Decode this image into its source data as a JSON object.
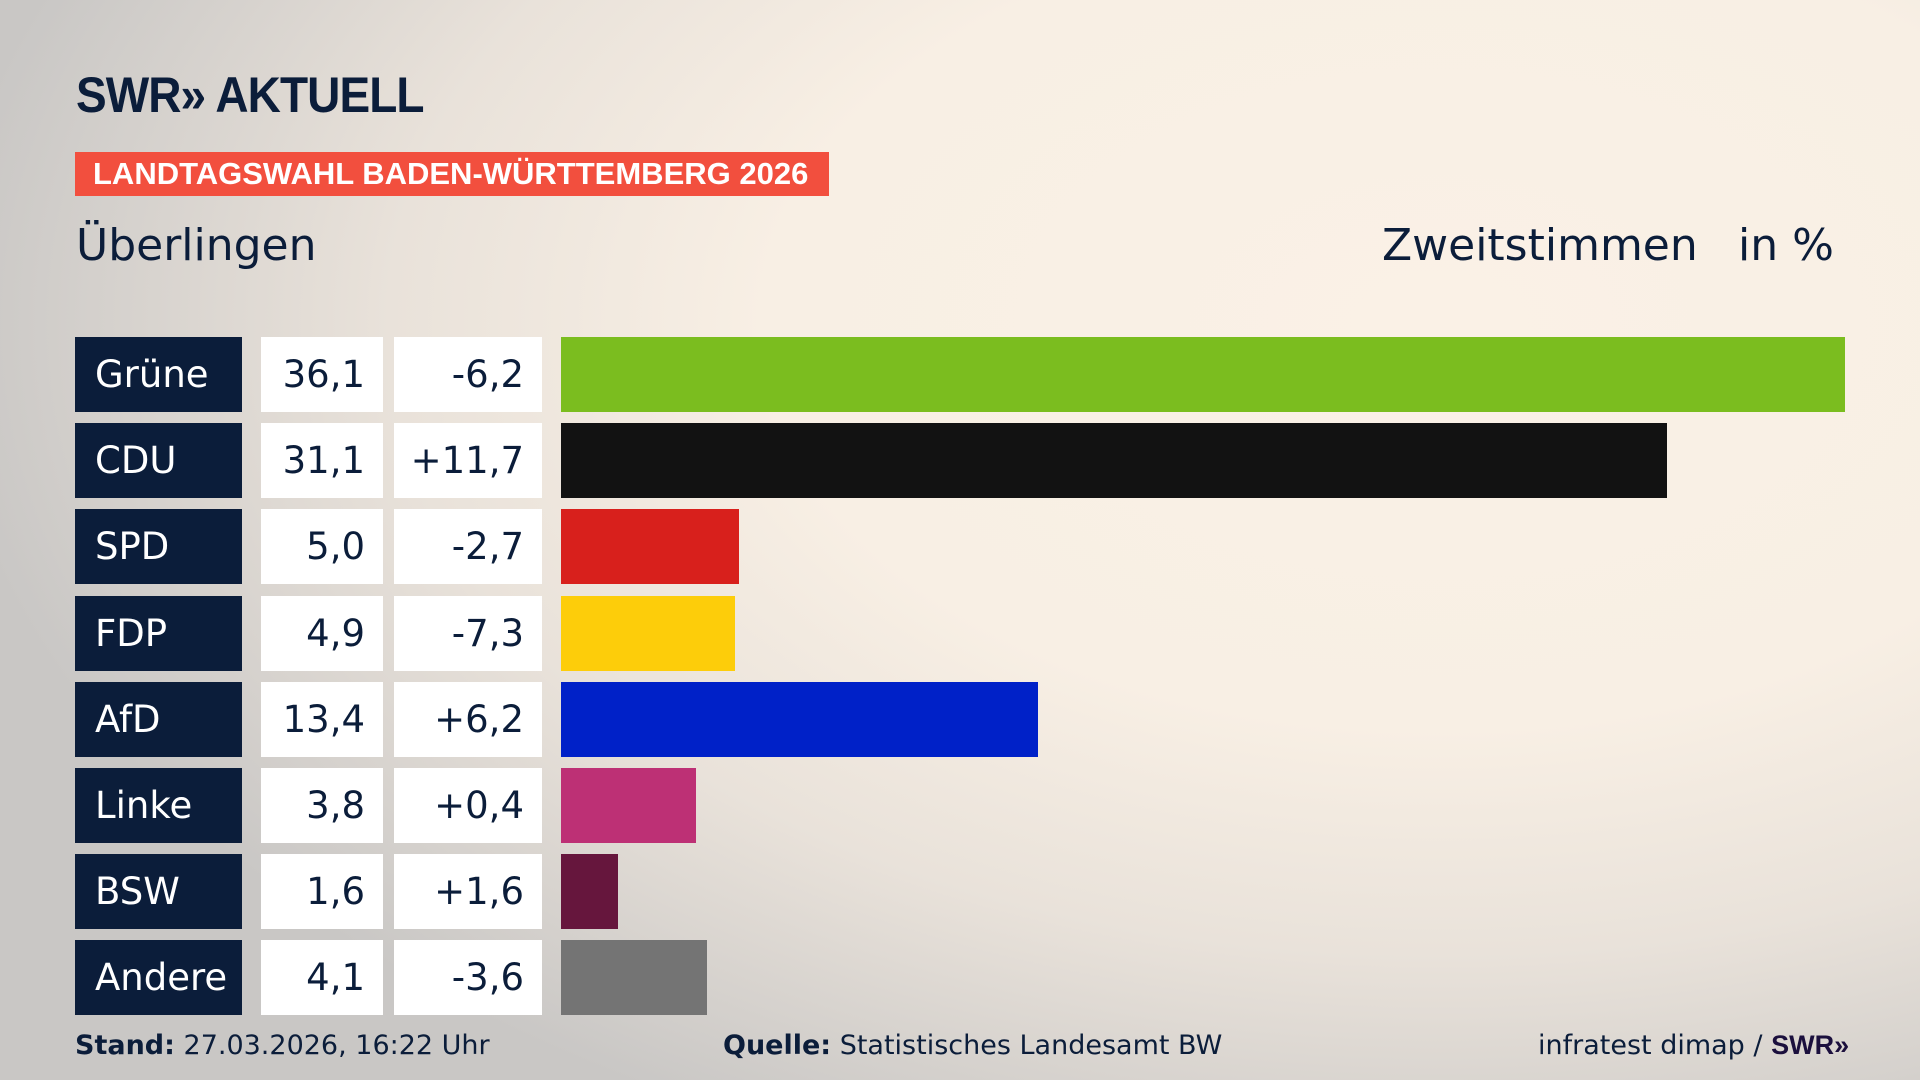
{
  "logo": "SWR» AKTUELL",
  "banner": "LANDTAGSWAHL BADEN-WÜRTTEMBERG 2026",
  "place": "Überlingen",
  "header_vote": "Zweitstimmen",
  "header_unit": "in %",
  "chart_data": {
    "type": "bar",
    "orientation": "horizontal",
    "categories": [
      "Grüne",
      "CDU",
      "SPD",
      "FDP",
      "AfD",
      "Linke",
      "BSW",
      "Andere"
    ],
    "values": [
      36.1,
      31.1,
      5.0,
      4.9,
      13.4,
      3.8,
      1.6,
      4.1
    ],
    "value_labels": [
      "36,1",
      "31,1",
      "5,0",
      "4,9",
      "13,4",
      "3,8",
      "1,6",
      "4,1"
    ],
    "diff_labels": [
      "-6,2",
      "+11,7",
      "-2,7",
      "-7,3",
      "+6,2",
      "+0,4",
      "+1,6",
      "-3,6"
    ],
    "colors": [
      "#7bbd1f",
      "#121212",
      "#d8201c",
      "#fdcd0a",
      "#0021c8",
      "#bd3075",
      "#66163d",
      "#747474"
    ],
    "xlim": [
      0,
      36.1
    ]
  },
  "footer": {
    "stand_label": "Stand:",
    "stand_value": "27.03.2026, 16:22 Uhr",
    "source_label": "Quelle:",
    "source_value": "Statistisches Landesamt BW",
    "credit": "infratest dimap / ",
    "credit_logo": "SWR»"
  }
}
